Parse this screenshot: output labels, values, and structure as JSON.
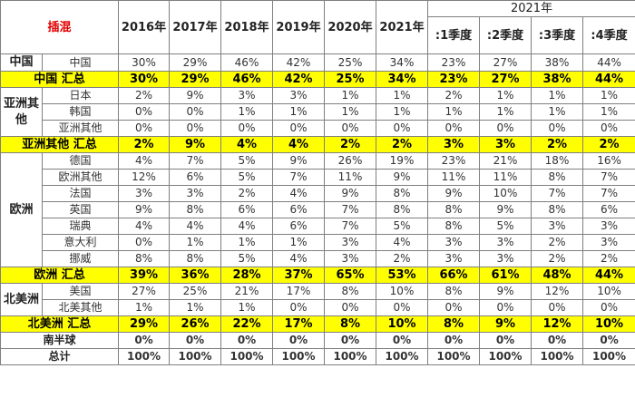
{
  "table": {
    "corner": "插混",
    "year_headers": [
      "2016年",
      "2017年",
      "2018年",
      "2019年",
      "2020年",
      "2021年"
    ],
    "quarter_group": "2021年",
    "quarter_headers": [
      ":1季度",
      ":2季度",
      ":3季度",
      ":4季度"
    ],
    "rows": [
      {
        "region": "中国",
        "sub": "中国",
        "values": [
          "30%",
          "29%",
          "46%",
          "42%",
          "25%",
          "34%",
          "23%",
          "27%",
          "38%",
          "44%"
        ]
      },
      {
        "total": "中国 汇总",
        "values": [
          "30%",
          "29%",
          "46%",
          "42%",
          "25%",
          "34%",
          "23%",
          "27%",
          "38%",
          "44%"
        ]
      },
      {
        "region": "亚洲其他",
        "sub": "日本",
        "values": [
          "2%",
          "9%",
          "3%",
          "3%",
          "1%",
          "1%",
          "2%",
          "1%",
          "1%",
          "1%"
        ]
      },
      {
        "sub": "韩国",
        "values": [
          "0%",
          "0%",
          "1%",
          "1%",
          "1%",
          "1%",
          "1%",
          "1%",
          "1%",
          "1%"
        ]
      },
      {
        "sub": "亚洲其他",
        "values": [
          "0%",
          "0%",
          "0%",
          "0%",
          "0%",
          "0%",
          "0%",
          "0%",
          "0%",
          "0%"
        ]
      },
      {
        "total": "亚洲其他 汇总",
        "values": [
          "2%",
          "9%",
          "4%",
          "4%",
          "2%",
          "2%",
          "3%",
          "3%",
          "2%",
          "2%"
        ]
      },
      {
        "region": "欧洲",
        "sub": "德国",
        "values": [
          "4%",
          "7%",
          "5%",
          "9%",
          "26%",
          "19%",
          "23%",
          "21%",
          "18%",
          "16%"
        ]
      },
      {
        "sub": "欧洲其他",
        "values": [
          "12%",
          "6%",
          "5%",
          "7%",
          "11%",
          "9%",
          "11%",
          "11%",
          "8%",
          "7%"
        ]
      },
      {
        "sub": "法国",
        "values": [
          "3%",
          "3%",
          "2%",
          "4%",
          "9%",
          "8%",
          "9%",
          "10%",
          "7%",
          "7%"
        ]
      },
      {
        "sub": "英国",
        "values": [
          "9%",
          "8%",
          "6%",
          "6%",
          "7%",
          "8%",
          "8%",
          "9%",
          "8%",
          "6%"
        ]
      },
      {
        "sub": "瑞典",
        "values": [
          "4%",
          "4%",
          "4%",
          "6%",
          "7%",
          "5%",
          "8%",
          "5%",
          "3%",
          "3%"
        ]
      },
      {
        "sub": "意大利",
        "values": [
          "0%",
          "1%",
          "1%",
          "1%",
          "3%",
          "4%",
          "3%",
          "3%",
          "2%",
          "3%"
        ]
      },
      {
        "sub": "挪威",
        "values": [
          "8%",
          "8%",
          "5%",
          "4%",
          "3%",
          "2%",
          "3%",
          "3%",
          "2%",
          "2%"
        ]
      },
      {
        "total": "欧洲 汇总",
        "values": [
          "39%",
          "36%",
          "28%",
          "37%",
          "65%",
          "53%",
          "66%",
          "61%",
          "48%",
          "44%"
        ]
      },
      {
        "region": "北美洲",
        "sub": "美国",
        "values": [
          "27%",
          "25%",
          "21%",
          "17%",
          "8%",
          "10%",
          "8%",
          "9%",
          "12%",
          "10%"
        ]
      },
      {
        "sub": "北美其他",
        "values": [
          "1%",
          "1%",
          "1%",
          "0%",
          "0%",
          "0%",
          "0%",
          "0%",
          "0%",
          "0%"
        ]
      },
      {
        "total": "北美洲 汇总",
        "values": [
          "29%",
          "26%",
          "22%",
          "17%",
          "8%",
          "10%",
          "8%",
          "9%",
          "12%",
          "10%"
        ]
      },
      {
        "label": "南半球",
        "values": [
          "0%",
          "0%",
          "0%",
          "0%",
          "0%",
          "0%",
          "0%",
          "0%",
          "0%",
          "0%"
        ]
      },
      {
        "label": "总计",
        "values": [
          "100%",
          "100%",
          "100%",
          "100%",
          "100%",
          "100%",
          "100%",
          "100%",
          "100%",
          "100%"
        ]
      }
    ]
  },
  "colors": {
    "total_highlight": "#ffff00",
    "corner_text": "#e00000",
    "grid": "#7f7f7f"
  }
}
